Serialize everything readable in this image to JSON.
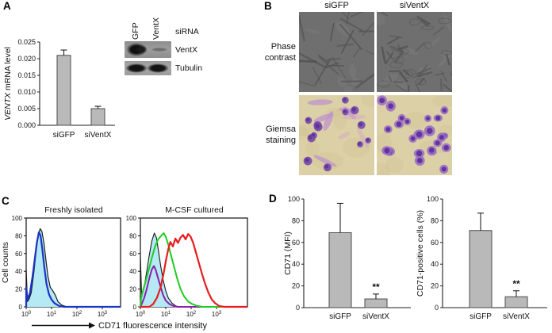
{
  "panels": {
    "a": {
      "label": "A"
    },
    "b": {
      "label": "B",
      "col_headers": [
        "siGFP",
        "siVentX"
      ],
      "row_labels": [
        "Phase\ncontrast",
        "Giemsa\nstaining"
      ]
    },
    "c": {
      "label": "C",
      "ylabel": "Cell counts",
      "xlabel": "CD71 fluorescence intensity"
    },
    "d": {
      "label": "D"
    }
  },
  "blot": {
    "lanes": [
      "GFP",
      "VentX"
    ],
    "sirna_label": "siRNA",
    "band_labels": [
      "VentX",
      "Tubulin"
    ]
  },
  "colors": {
    "bar_fill": "#b9b9b9",
    "bar_stroke": "#4d4d4d",
    "hist_fill": "#b5e9f4",
    "hist_fill_outline": "#1a1a1a",
    "blue_curve": "#1b35c4",
    "purple_curve": "#8a1fae",
    "green_curve": "#1ecc1e",
    "red_curve": "#e81c1c",
    "giemsa_bg": "#dcd1a6",
    "giemsa_cell": "#7448ac",
    "phase_bg": "#6f6f6f"
  },
  "chart_data": [
    {
      "id": "ventx_mrna",
      "panel": "A",
      "type": "bar",
      "categories": [
        "siGFP",
        "siVentX"
      ],
      "values": [
        0.021,
        0.005
      ],
      "errors": [
        0.0016,
        0.0007
      ],
      "ylabel_parts": [
        {
          "t": "VENTX",
          "i": true
        },
        {
          "t": " mRNA level"
        }
      ],
      "ylim": [
        0,
        0.025
      ],
      "yticks": [
        "0.000",
        "0.005",
        "0.010",
        "0.015",
        "0.020",
        "0.025"
      ]
    },
    {
      "id": "cd71_freshly",
      "panel": "C",
      "type": "histogram",
      "title": "Freshly isolated",
      "ylim": [
        0,
        100
      ],
      "yticks": [
        "0",
        "20",
        "40",
        "60",
        "80",
        "100"
      ],
      "xtick_base": "10",
      "xtick_exponents": [
        "0",
        "1",
        "2",
        "3"
      ],
      "xlim_decades": [
        0,
        3.7
      ],
      "series": [
        {
          "name": "isotype-filled",
          "color": "#1a1a1a",
          "fill": "#b5e9f4",
          "width": 1.2,
          "points": [
            [
              0,
              0
            ],
            [
              0,
              42
            ],
            [
              0.05,
              6
            ],
            [
              0.12,
              9
            ],
            [
              0.2,
              16
            ],
            [
              0.3,
              38
            ],
            [
              0.38,
              60
            ],
            [
              0.46,
              78
            ],
            [
              0.55,
              88
            ],
            [
              0.62,
              85
            ],
            [
              0.7,
              72
            ],
            [
              0.78,
              52
            ],
            [
              0.86,
              34
            ],
            [
              0.95,
              22
            ],
            [
              1.05,
              18
            ],
            [
              1.15,
              13
            ],
            [
              1.25,
              6
            ],
            [
              1.4,
              2
            ],
            [
              1.6,
              0
            ],
            [
              4.4,
              0
            ]
          ]
        },
        {
          "name": "cd71-blue",
          "color": "#1b35c4",
          "width": 2.2,
          "points": [
            [
              0,
              0
            ],
            [
              0,
              22
            ],
            [
              0.05,
              8
            ],
            [
              0.15,
              16
            ],
            [
              0.25,
              34
            ],
            [
              0.33,
              52
            ],
            [
              0.42,
              72
            ],
            [
              0.5,
              84
            ],
            [
              0.57,
              80
            ],
            [
              0.64,
              64
            ],
            [
              0.72,
              44
            ],
            [
              0.8,
              26
            ],
            [
              0.9,
              14
            ],
            [
              1.0,
              8
            ],
            [
              1.12,
              4
            ],
            [
              1.3,
              1
            ],
            [
              1.5,
              0
            ],
            [
              4.4,
              0
            ]
          ]
        }
      ]
    },
    {
      "id": "cd71_mcsf",
      "panel": "C",
      "type": "histogram",
      "title": "M-CSF cultured",
      "ylim": [
        0,
        100
      ],
      "yticks": [
        "0",
        "20",
        "40",
        "60",
        "80",
        "100"
      ],
      "xtick_base": "10",
      "xtick_exponents": [
        "0",
        "1",
        "2",
        "3"
      ],
      "xlim_decades": [
        0,
        4.3
      ],
      "series": [
        {
          "name": "isotype-filled",
          "color": "#1a1a1a",
          "fill": "#b5e9f4",
          "width": 1.1,
          "points": [
            [
              0,
              0
            ],
            [
              0,
              57
            ],
            [
              0.05,
              12
            ],
            [
              0.15,
              22
            ],
            [
              0.25,
              40
            ],
            [
              0.35,
              58
            ],
            [
              0.45,
              74
            ],
            [
              0.55,
              83
            ],
            [
              0.63,
              78
            ],
            [
              0.72,
              62
            ],
            [
              0.8,
              46
            ],
            [
              0.9,
              30
            ],
            [
              1.0,
              18
            ],
            [
              1.1,
              10
            ],
            [
              1.25,
              4
            ],
            [
              1.4,
              1
            ],
            [
              1.55,
              0
            ],
            [
              4.4,
              0
            ]
          ]
        },
        {
          "name": "purple-curve",
          "color": "#8a1fae",
          "width": 2,
          "points": [
            [
              0,
              0
            ],
            [
              0.05,
              3
            ],
            [
              0.15,
              10
            ],
            [
              0.25,
              20
            ],
            [
              0.35,
              32
            ],
            [
              0.45,
              42
            ],
            [
              0.53,
              46
            ],
            [
              0.6,
              42
            ],
            [
              0.7,
              32
            ],
            [
              0.8,
              22
            ],
            [
              0.9,
              13
            ],
            [
              1.0,
              7
            ],
            [
              1.15,
              3
            ],
            [
              1.3,
              1
            ],
            [
              1.45,
              0
            ],
            [
              4.4,
              0
            ]
          ]
        },
        {
          "name": "green-curve",
          "color": "#1ecc1e",
          "width": 2,
          "points": [
            [
              0,
              0
            ],
            [
              0.03,
              10
            ],
            [
              0.12,
              20
            ],
            [
              0.22,
              30
            ],
            [
              0.33,
              42
            ],
            [
              0.45,
              55
            ],
            [
              0.58,
              68
            ],
            [
              0.7,
              76
            ],
            [
              0.82,
              80
            ],
            [
              0.92,
              83
            ],
            [
              1.0,
              79
            ],
            [
              1.1,
              70
            ],
            [
              1.2,
              59
            ],
            [
              1.32,
              46
            ],
            [
              1.45,
              32
            ],
            [
              1.58,
              20
            ],
            [
              1.72,
              12
            ],
            [
              1.88,
              6
            ],
            [
              2.05,
              3
            ],
            [
              2.25,
              1
            ],
            [
              2.45,
              0
            ],
            [
              4.4,
              0
            ]
          ]
        },
        {
          "name": "red-curve",
          "color": "#e81c1c",
          "width": 2.2,
          "points": [
            [
              0,
              0
            ],
            [
              0.35,
              0
            ],
            [
              0.5,
              3
            ],
            [
              0.65,
              10
            ],
            [
              0.8,
              22
            ],
            [
              0.92,
              38
            ],
            [
              1.02,
              54
            ],
            [
              1.1,
              65
            ],
            [
              1.18,
              73
            ],
            [
              1.28,
              68
            ],
            [
              1.38,
              77
            ],
            [
              1.48,
              72
            ],
            [
              1.58,
              78
            ],
            [
              1.68,
              81
            ],
            [
              1.78,
              76
            ],
            [
              1.88,
              82
            ],
            [
              1.98,
              79
            ],
            [
              2.08,
              72
            ],
            [
              2.18,
              62
            ],
            [
              2.3,
              50
            ],
            [
              2.42,
              38
            ],
            [
              2.55,
              26
            ],
            [
              2.68,
              16
            ],
            [
              2.82,
              8
            ],
            [
              2.95,
              4
            ],
            [
              3.1,
              1
            ],
            [
              3.3,
              0
            ],
            [
              4.4,
              0
            ]
          ]
        }
      ]
    },
    {
      "id": "cd71_mfi",
      "panel": "D",
      "type": "bar",
      "categories": [
        "siGFP",
        "siVentX"
      ],
      "values": [
        69,
        8
      ],
      "errors": [
        27,
        4.5
      ],
      "sig": [
        "",
        "**"
      ],
      "ylabel_parts": [
        {
          "t": "CD71 (MFI)"
        }
      ],
      "ylim": [
        0,
        100
      ],
      "yticks": [
        "0",
        "20",
        "40",
        "60",
        "80",
        "100"
      ]
    },
    {
      "id": "cd71_pos",
      "panel": "D",
      "type": "bar",
      "categories": [
        "siGFP",
        "siVentX"
      ],
      "values": [
        71,
        10
      ],
      "errors": [
        16,
        5.5
      ],
      "sig": [
        "",
        "**"
      ],
      "ylabel_parts": [
        {
          "t": "CD71-positive cells (%)"
        }
      ],
      "ylim": [
        0,
        100
      ],
      "yticks": [
        "0",
        "20",
        "40",
        "60",
        "80",
        "100"
      ]
    }
  ]
}
